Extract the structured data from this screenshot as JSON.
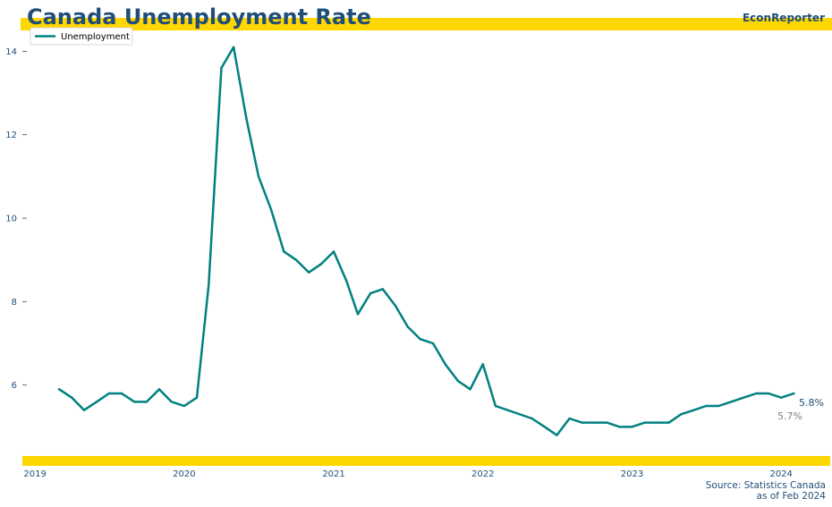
{
  "header": {
    "title": "Canada Unemployment Rate",
    "brand": "EconReporter"
  },
  "source": {
    "line1": "Source: Statistics Canada",
    "line2": "as of Feb 2024"
  },
  "colors": {
    "accent_band": "#FFD700",
    "series_line": "#008080",
    "text": "#1F4E79",
    "muted_text": "#808080"
  },
  "annotations": {
    "last_value": "5.8%",
    "previous_value": "5.7%"
  },
  "chart_data": {
    "type": "line",
    "title": "Canada Unemployment Rate",
    "xlabel": "",
    "ylabel": "",
    "grid": false,
    "legend_position": "top-left",
    "x_ticks": [
      "2019",
      "2020",
      "2021",
      "2022",
      "2023",
      "2024"
    ],
    "y_ticks": [
      6,
      8,
      10,
      12,
      14
    ],
    "xlim": [
      "2018-12-01",
      "2024-04-30"
    ],
    "ylim": [
      4.3,
      14.5
    ],
    "x": [
      "2019-03",
      "2019-04",
      "2019-05",
      "2019-06",
      "2019-07",
      "2019-08",
      "2019-09",
      "2019-10",
      "2019-11",
      "2019-12",
      "2020-01",
      "2020-02",
      "2020-03",
      "2020-04",
      "2020-05",
      "2020-06",
      "2020-07",
      "2020-08",
      "2020-09",
      "2020-10",
      "2020-11",
      "2020-12",
      "2021-01",
      "2021-02",
      "2021-03",
      "2021-04",
      "2021-05",
      "2021-06",
      "2021-07",
      "2021-08",
      "2021-09",
      "2021-10",
      "2021-11",
      "2021-12",
      "2022-01",
      "2022-02",
      "2022-05",
      "2022-06",
      "2022-07",
      "2022-08",
      "2022-09",
      "2022-10",
      "2022-11",
      "2022-12",
      "2023-01",
      "2023-02",
      "2023-03",
      "2023-04",
      "2023-05",
      "2023-06",
      "2023-07",
      "2023-08",
      "2023-09",
      "2023-10",
      "2023-11",
      "2023-12",
      "2024-01",
      "2024-02"
    ],
    "series": [
      {
        "name": "Unemployment",
        "values": [
          5.9,
          5.7,
          5.4,
          5.6,
          5.8,
          5.8,
          5.6,
          5.6,
          5.9,
          5.6,
          5.5,
          5.7,
          8.4,
          13.6,
          14.1,
          12.4,
          11.0,
          10.2,
          9.2,
          9.0,
          8.7,
          8.9,
          9.2,
          8.5,
          7.7,
          8.2,
          8.3,
          7.9,
          7.4,
          7.1,
          7.0,
          6.5,
          6.1,
          5.9,
          6.5,
          5.5,
          5.2,
          5.0,
          4.8,
          5.2,
          5.1,
          5.1,
          5.1,
          5.0,
          5.0,
          5.1,
          5.1,
          5.1,
          5.3,
          5.4,
          5.5,
          5.5,
          5.6,
          5.7,
          5.8,
          5.8,
          5.7,
          5.8
        ]
      }
    ]
  }
}
